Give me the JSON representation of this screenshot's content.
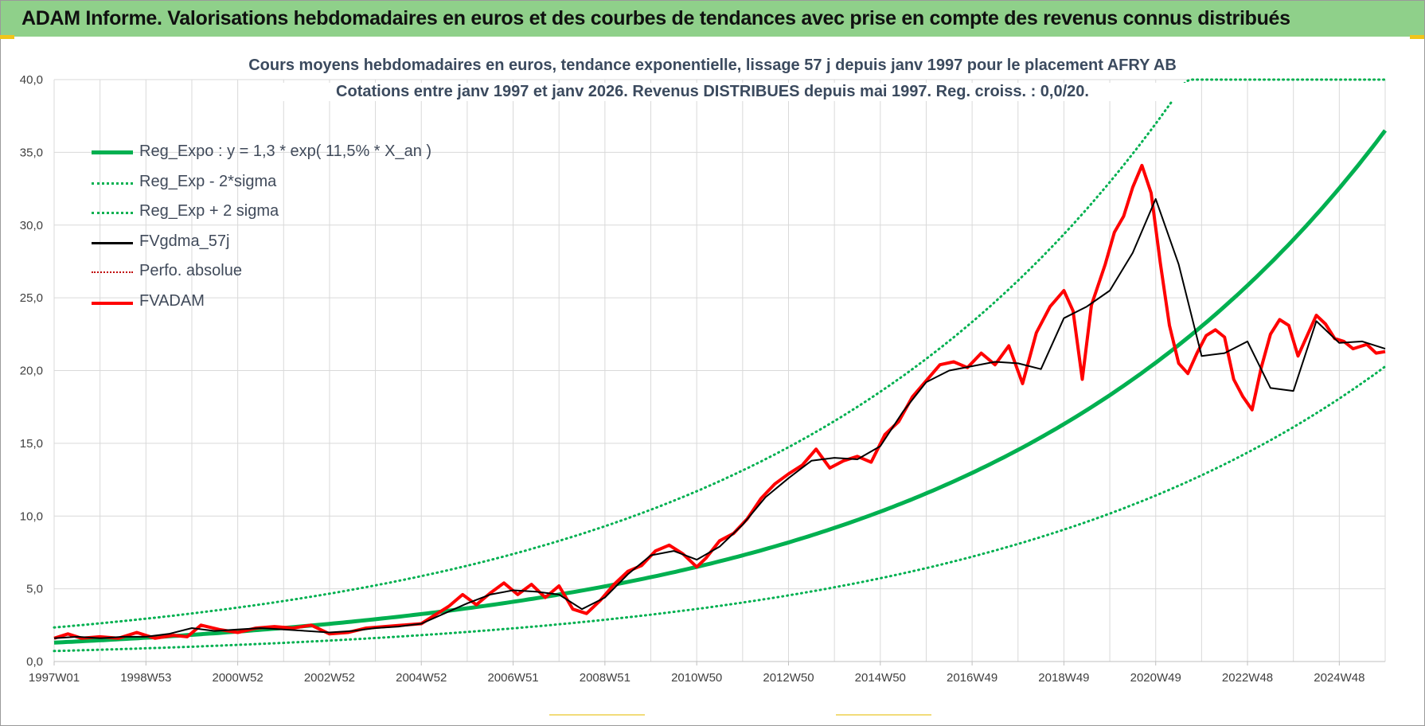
{
  "banner_title": "ADAM Informe. Valorisations hebdomadaires en euros et des courbes de tendances avec prise en compte des revenus connus distribués",
  "colors": {
    "banner": "#8fd08a",
    "reg": "#00b050",
    "fv": "#000000",
    "fvadam": "#ff0000",
    "perfo": "#c00000"
  },
  "chart_data": {
    "type": "line",
    "title_line1": "Cours moyens hebdomadaires en euros, tendance exponentielle, lissage 57 j depuis janv 1997 pour le placement AFRY AB",
    "title_line2": "Cotations entre janv 1997 et janv 2026. Revenus DISTRIBUES depuis mai 1997. Reg. croiss. : 0,0/20.",
    "x_range": [
      1997.0,
      2026.0
    ],
    "ylim": [
      0,
      40
    ],
    "y_ticks": [
      "0,0",
      "5,0",
      "10,0",
      "15,0",
      "20,0",
      "25,0",
      "30,0",
      "35,0",
      "40,0"
    ],
    "x_tick_labels": [
      "1997W01",
      "1998W53",
      "2000W52",
      "2002W52",
      "2004W52",
      "2006W51",
      "2008W51",
      "2010W50",
      "2012W50",
      "2014W50",
      "2016W49",
      "2018W49",
      "2020W49",
      "2022W48",
      "2024W48"
    ],
    "regression": {
      "a": 1.3,
      "rate": 0.115,
      "band_factor": 1.8,
      "cap": 40
    },
    "legend": [
      {
        "label": "Reg_Expo : y = 1,3 * exp( 11,5% *  X_an )",
        "style": "solid-thick",
        "color": "#00b050"
      },
      {
        "label": "Reg_Exp - 2*sigma",
        "style": "dotted",
        "color": "#00b050"
      },
      {
        "label": "Reg_Exp + 2 sigma",
        "style": "dotted",
        "color": "#00b050"
      },
      {
        "label": "FVgdma_57j",
        "style": "solid",
        "color": "#000000"
      },
      {
        "label": "Perfo. absolue",
        "style": "dotted",
        "color": "#c00000"
      },
      {
        "label": "FVADAM",
        "style": "solid-thick",
        "color": "#ff0000"
      }
    ],
    "series": [
      {
        "name": "FVADAM",
        "x": [
          1997.0,
          1997.3,
          1997.6,
          1998.0,
          1998.4,
          1998.8,
          1999.2,
          1999.6,
          1999.9,
          2000.2,
          2000.6,
          2001.0,
          2001.4,
          2001.8,
          2002.2,
          2002.6,
          2003.0,
          2003.4,
          2003.8,
          2004.2,
          2004.6,
          2005.0,
          2005.3,
          2005.6,
          2005.9,
          2006.2,
          2006.5,
          2006.8,
          2007.1,
          2007.4,
          2007.7,
          2008.0,
          2008.3,
          2008.6,
          2008.9,
          2009.2,
          2009.5,
          2009.8,
          2010.1,
          2010.4,
          2010.7,
          2011.0,
          2011.2,
          2011.5,
          2011.8,
          2012.1,
          2012.4,
          2012.7,
          2013.0,
          2013.3,
          2013.6,
          2013.9,
          2014.2,
          2014.5,
          2014.8,
          2015.1,
          2015.4,
          2015.7,
          2016.0,
          2016.3,
          2016.6,
          2016.9,
          2017.2,
          2017.5,
          2017.8,
          2018.1,
          2018.4,
          2018.7,
          2019.0,
          2019.2,
          2019.4,
          2019.6,
          2019.9,
          2020.1,
          2020.3,
          2020.5,
          2020.7,
          2020.9,
          2021.1,
          2021.3,
          2021.5,
          2021.7,
          2021.9,
          2022.1,
          2022.3,
          2022.5,
          2022.7,
          2022.9,
          2023.1,
          2023.3,
          2023.5,
          2023.7,
          2023.9,
          2024.1,
          2024.3,
          2024.5,
          2024.7,
          2024.9,
          2025.1,
          2025.3,
          2025.6,
          2025.8,
          2026.0
        ],
        "values": [
          1.6,
          1.9,
          1.6,
          1.7,
          1.6,
          2.0,
          1.6,
          1.8,
          1.7,
          2.5,
          2.2,
          2.0,
          2.3,
          2.4,
          2.3,
          2.5,
          1.9,
          2.0,
          2.3,
          2.4,
          2.5,
          2.6,
          3.2,
          3.8,
          4.6,
          3.9,
          4.7,
          5.4,
          4.6,
          5.3,
          4.4,
          5.2,
          3.6,
          3.3,
          4.2,
          5.3,
          6.2,
          6.6,
          7.6,
          8.0,
          7.4,
          6.5,
          7.1,
          8.3,
          8.8,
          9.8,
          11.2,
          12.2,
          12.9,
          13.5,
          14.6,
          13.3,
          13.8,
          14.1,
          13.7,
          15.6,
          16.5,
          18.2,
          19.3,
          20.4,
          20.6,
          20.2,
          21.2,
          20.4,
          21.7,
          19.1,
          22.6,
          24.4,
          25.5,
          24.1,
          19.4,
          24.5,
          27.3,
          29.5,
          30.6,
          32.6,
          34.1,
          32.2,
          27.4,
          23.1,
          20.5,
          19.8,
          21.2,
          22.4,
          22.8,
          22.3,
          19.4,
          18.2,
          17.3,
          20.2,
          22.5,
          23.5,
          23.1,
          21.0,
          22.4,
          23.8,
          23.2,
          22.2,
          22.0,
          21.5,
          21.8,
          21.2,
          21.3
        ]
      },
      {
        "name": "FVgdma_57j",
        "x": [
          1997.0,
          1997.5,
          1998.0,
          1998.5,
          1999.0,
          1999.5,
          2000.0,
          2000.5,
          2001.0,
          2001.5,
          2002.0,
          2002.5,
          2003.0,
          2003.5,
          2004.0,
          2004.5,
          2005.0,
          2005.5,
          2006.0,
          2006.5,
          2007.0,
          2007.5,
          2008.0,
          2008.5,
          2009.0,
          2009.5,
          2010.0,
          2010.5,
          2011.0,
          2011.5,
          2012.0,
          2012.5,
          2013.0,
          2013.5,
          2014.0,
          2014.5,
          2015.0,
          2015.5,
          2016.0,
          2016.5,
          2017.0,
          2017.5,
          2018.0,
          2018.5,
          2019.0,
          2019.5,
          2020.0,
          2020.5,
          2021.0,
          2021.5,
          2022.0,
          2022.5,
          2023.0,
          2023.5,
          2024.0,
          2024.5,
          2025.0,
          2025.5,
          2026.0
        ],
        "values": [
          1.6,
          1.7,
          1.6,
          1.7,
          1.7,
          1.9,
          2.3,
          2.1,
          2.2,
          2.3,
          2.2,
          2.1,
          2.0,
          2.1,
          2.3,
          2.4,
          2.6,
          3.3,
          4.0,
          4.6,
          4.9,
          4.8,
          4.6,
          3.6,
          4.4,
          6.0,
          7.3,
          7.6,
          7.0,
          7.9,
          9.4,
          11.3,
          12.6,
          13.8,
          14.0,
          13.9,
          14.8,
          17.2,
          19.2,
          20.0,
          20.3,
          20.6,
          20.5,
          20.1,
          23.6,
          24.4,
          25.5,
          28.1,
          31.8,
          27.3,
          21.0,
          21.2,
          22.0,
          18.8,
          18.6,
          23.4,
          21.9,
          22.0,
          21.5
        ]
      }
    ]
  }
}
